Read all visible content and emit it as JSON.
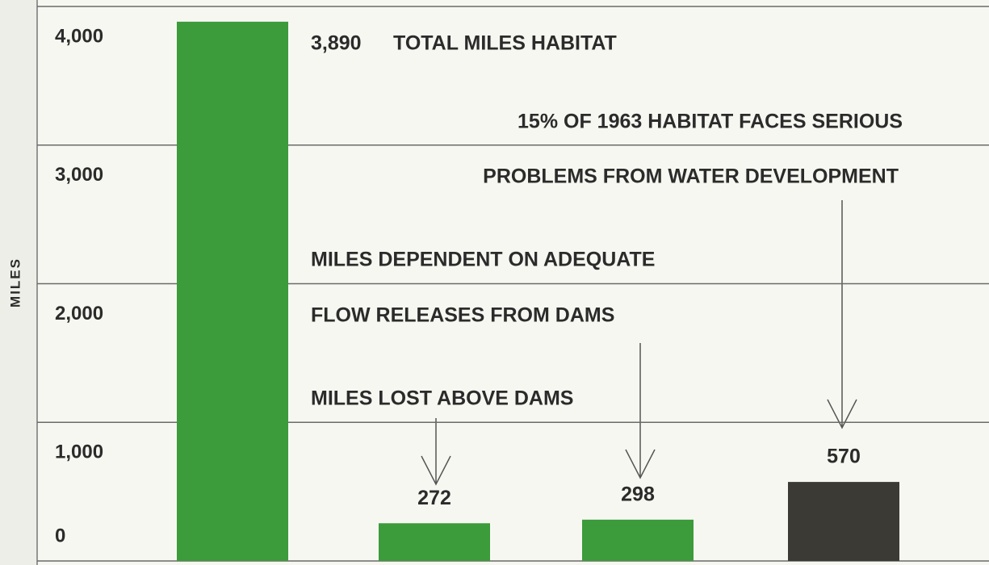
{
  "chart_data": {
    "type": "bar",
    "y_label": "MILES",
    "categories": [
      null,
      null,
      null,
      null
    ],
    "values": [
      3890,
      272,
      298,
      570
    ],
    "value_labels": [
      "3,890",
      "272",
      "298",
      "570"
    ],
    "colors": [
      "#3c9b3a",
      "#3c9b3a",
      "#3c9b3a",
      "#3b3a35"
    ],
    "ylim": [
      0,
      4000
    ],
    "yticks": [
      0,
      {
        "value": 1000,
        "label": "1,000"
      },
      {
        "value": 2000,
        "label": "2,000"
      },
      {
        "value": 3000,
        "label": "3,000"
      },
      {
        "value": 4000,
        "label": "4,000"
      }
    ],
    "grid": true,
    "annotations": [
      {
        "lines": [
          "TOTAL MILES HABITAT"
        ]
      },
      {
        "lines": [
          "15% OF 1963 HABITAT FACES SERIOUS",
          "PROBLEMS FROM WATER DEVELOPMENT"
        ]
      },
      {
        "lines": [
          "MILES DEPENDENT ON ADEQUATE",
          "FLOW RELEASES FROM DAMS"
        ]
      },
      {
        "lines": [
          "MILES LOST ABOVE DAMS"
        ]
      }
    ]
  }
}
